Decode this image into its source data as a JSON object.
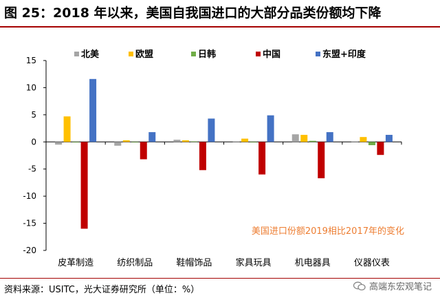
{
  "title": "图 25：2018 年以来，美国自我国进口的大部分品类份额均下降",
  "source": "资料来源：USITC，光大证券研究所（单位：%）",
  "watermark": "高端东宏观笔记",
  "chart_data": {
    "type": "bar",
    "title": "图 25：2018 年以来，美国自我国进口的大部分品类份额均下降",
    "annotation": "美国进口份额2019相比2017年的变化",
    "categories": [
      "皮革制造",
      "纺织制品",
      "鞋帽饰品",
      "家具玩具",
      "机电器具",
      "仪器仪表"
    ],
    "ylim": [
      -20,
      15
    ],
    "yticks": [
      15,
      10,
      5,
      0,
      -5,
      -10,
      -15,
      -20
    ],
    "legend_position": "top",
    "series": [
      {
        "name": "北美",
        "color": "#A5A5A5",
        "values": [
          -0.5,
          -0.7,
          0.4,
          0.1,
          1.4,
          0.1
        ]
      },
      {
        "name": "欧盟",
        "color": "#FFC000",
        "values": [
          4.7,
          0.3,
          0.3,
          0.6,
          1.3,
          0.9
        ]
      },
      {
        "name": "日韩",
        "color": "#70AD47",
        "values": [
          -0.1,
          -0.1,
          0.1,
          -0.1,
          0.2,
          -0.6
        ]
      },
      {
        "name": "中国",
        "color": "#C00000",
        "values": [
          -16.0,
          -3.2,
          -5.2,
          -6.0,
          -6.7,
          -2.4
        ]
      },
      {
        "name": "东盟+印度",
        "color": "#4472C4",
        "values": [
          11.6,
          1.8,
          4.3,
          4.9,
          1.8,
          1.3
        ]
      }
    ]
  }
}
